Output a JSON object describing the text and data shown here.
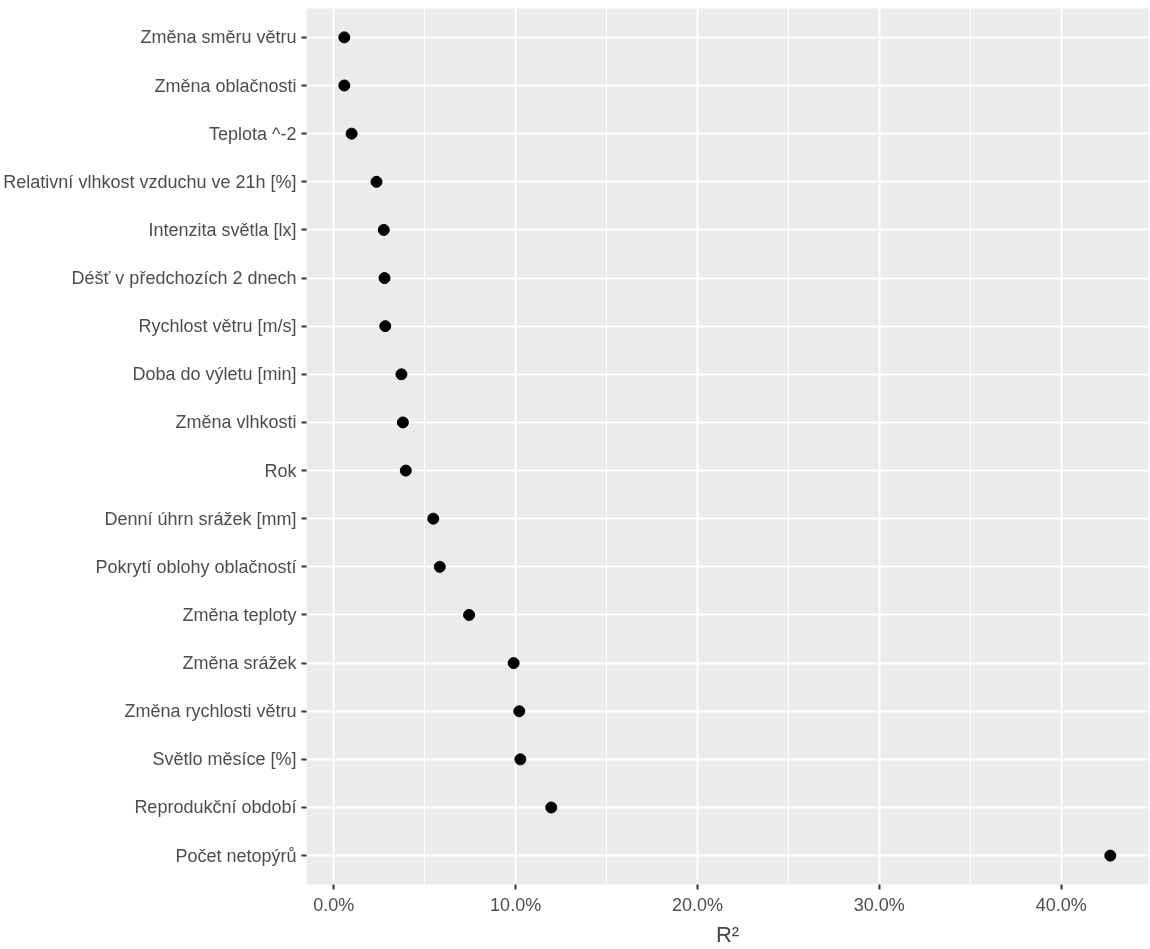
{
  "chart_data": {
    "type": "scatter",
    "orientation": "horizontal",
    "xlabel": "R²",
    "categories": [
      "Změna směru větru",
      "Změna oblačnosti",
      "Teplota ^-2",
      "Relativní vlhkost vzduchu ve 21h [%]",
      "Intenzita světla [lx]",
      "Déšť v předchozích 2 dnech",
      "Rychlost větru [m/s]",
      "Doba do výletu [min]",
      "Změna vlhkosti",
      "Rok",
      "Denní úhrn srážek [mm]",
      "Pokrytí oblohy oblačností",
      "Změna teploty",
      "Změna srážek",
      "Změna rychlosti větru",
      "Světlo měsíce [%]",
      "Reprodukční období",
      "Počet netopýrů"
    ],
    "values": [
      0.58,
      0.58,
      0.98,
      2.35,
      2.75,
      2.79,
      2.83,
      3.72,
      3.8,
      3.96,
      5.47,
      5.83,
      7.44,
      9.89,
      10.2,
      10.26,
      11.96,
      42.7
    ],
    "color": "#000000",
    "marker": "circle",
    "xlim": [
      -1.5,
      44.8
    ],
    "xticks": [
      {
        "value": 0,
        "label": "0.0%"
      },
      {
        "value": 10,
        "label": "10.0%"
      },
      {
        "value": 20,
        "label": "20.0%"
      },
      {
        "value": 30,
        "label": "30.0%"
      },
      {
        "value": 40,
        "label": "40.0%"
      }
    ],
    "grid": true
  }
}
